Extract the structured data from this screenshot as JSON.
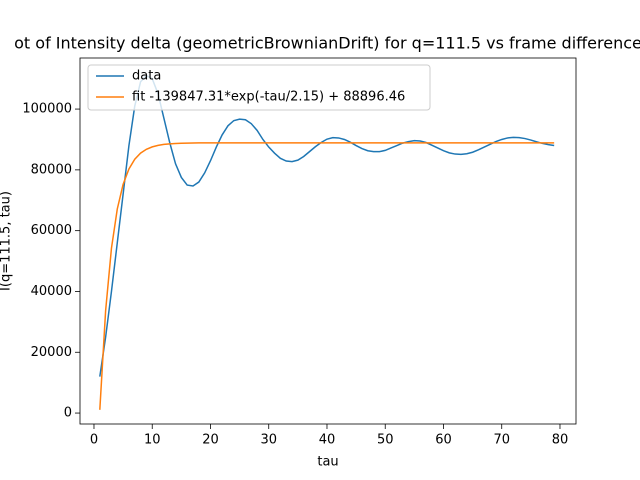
{
  "chart_data": {
    "type": "line",
    "title": "ot of Intensity delta (geometricBrownianDrift) for q=111.5 vs frame difference",
    "x_label": "tau",
    "y_label": "I(q=111.5, tau)",
    "x": [
      1,
      2,
      3,
      4,
      5,
      6,
      7,
      8,
      9,
      10,
      11,
      12,
      13,
      14,
      15,
      16,
      17,
      18,
      19,
      20,
      21,
      22,
      23,
      24,
      25,
      26,
      27,
      28,
      29,
      30,
      31,
      32,
      33,
      34,
      35,
      36,
      37,
      38,
      39,
      40,
      41,
      42,
      43,
      44,
      45,
      46,
      47,
      48,
      49,
      50,
      51,
      52,
      53,
      54,
      55,
      56,
      57,
      58,
      59,
      60,
      61,
      62,
      63,
      64,
      65,
      66,
      67,
      68,
      69,
      70,
      71,
      72,
      73,
      74,
      75,
      76,
      77,
      78,
      79
    ],
    "series": [
      {
        "name": "data",
        "color": "#1f77b4",
        "values": [
          12000,
          25000,
          40000,
          56000,
          72000,
          88000,
          101000,
          109000,
          111000,
          110000,
          105000,
          97000,
          89000,
          82000,
          77500,
          75000,
          74700,
          76000,
          79000,
          83000,
          87500,
          91500,
          94500,
          96200,
          96700,
          96500,
          95200,
          93000,
          90000,
          87500,
          85500,
          83800,
          82900,
          82700,
          83200,
          84400,
          86000,
          87600,
          89000,
          90100,
          90600,
          90500,
          90000,
          89100,
          88000,
          87000,
          86300,
          86000,
          86000,
          86400,
          87200,
          88000,
          88800,
          89300,
          89600,
          89500,
          89000,
          88100,
          87200,
          86300,
          85600,
          85200,
          85100,
          85300,
          85800,
          86600,
          87500,
          88400,
          89300,
          90000,
          90500,
          90700,
          90600,
          90300,
          89800,
          89200,
          88700,
          88300,
          88000
        ]
      },
      {
        "name": "fit -139847.31*exp(-tau/2.15) + 88896.46",
        "color": "#ff7f0e",
        "values": [
          1059,
          33726,
          54242,
          67136,
          75233,
          80309,
          83498,
          85512,
          86770,
          87560,
          88057,
          88369,
          88565,
          88688,
          88766,
          88814,
          88843,
          88862,
          88873,
          88880,
          88886,
          88889,
          88891,
          88893,
          88894,
          88895,
          88895,
          88896,
          88896,
          88896,
          88896,
          88896,
          88896,
          88896,
          88896,
          88896,
          88896,
          88896,
          88896,
          88896,
          88896,
          88896,
          88896,
          88896,
          88896,
          88896,
          88896,
          88896,
          88896,
          88896,
          88896,
          88896,
          88896,
          88896,
          88896,
          88896,
          88896,
          88896,
          88896,
          88896,
          88896,
          88896,
          88896,
          88896,
          88896,
          88896,
          88896,
          88896,
          88896,
          88896,
          88896,
          88896,
          88896,
          88896,
          88896,
          88896,
          88896,
          88896,
          88896
        ]
      }
    ],
    "xlim": [
      -2.4,
      82.75
    ],
    "ylim": [
      -3600,
      116800
    ],
    "xticks": [
      0,
      10,
      20,
      30,
      40,
      50,
      60,
      70,
      80
    ],
    "yticks": [
      0,
      20000,
      40000,
      60000,
      80000,
      100000
    ],
    "grid": false,
    "legend": "upper left"
  }
}
